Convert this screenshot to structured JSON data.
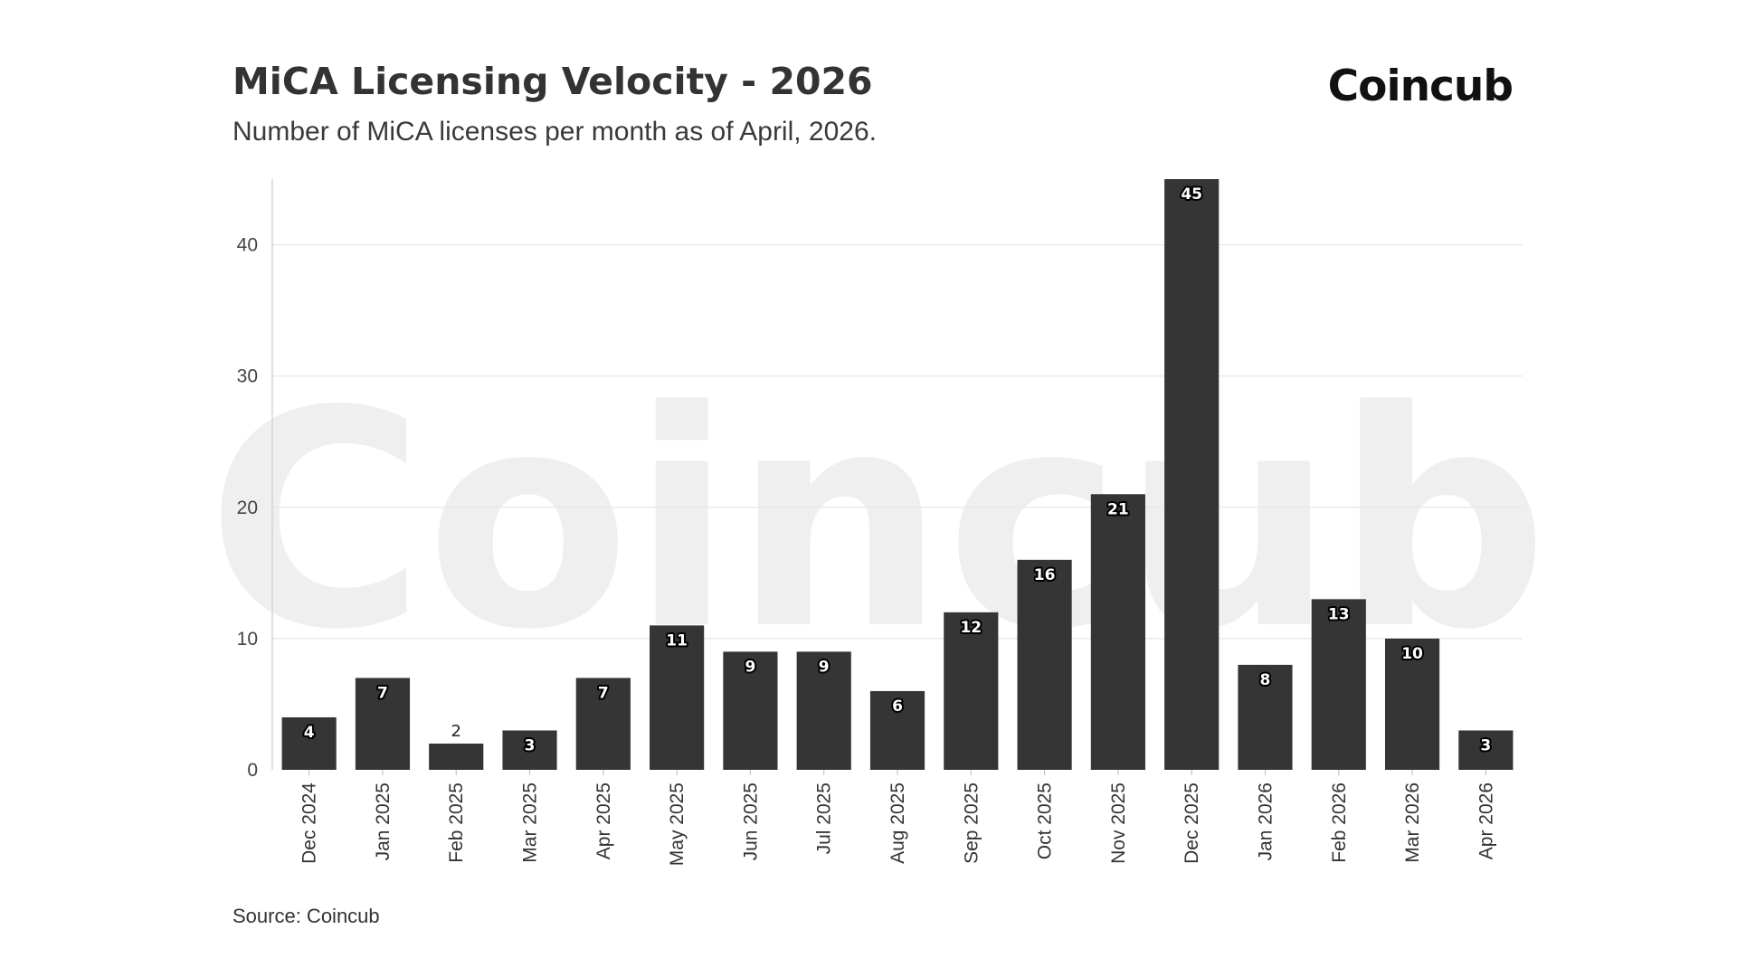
{
  "header": {
    "title": "MiCA Licensing Velocity - 2026",
    "subtitle": "Number of MiCA licenses per month as of April, 2026.",
    "brand": "Coincub"
  },
  "footer": {
    "source": "Source: Coincub"
  },
  "watermark": "Coincub",
  "colors": {
    "bar": "#2e2e2e",
    "grid": "#e6e6e6",
    "axis": "#cccccc",
    "watermark": "#e9e9e9"
  },
  "chart_data": {
    "type": "bar",
    "title": "MiCA Licensing Velocity - 2026",
    "subtitle": "Number of MiCA licenses per month as of April, 2026.",
    "xlabel": "",
    "ylabel": "",
    "categories": [
      "Dec 2024",
      "Jan 2025",
      "Feb 2025",
      "Mar 2025",
      "Apr 2025",
      "May 2025",
      "Jun 2025",
      "Jul 2025",
      "Aug 2025",
      "Sep 2025",
      "Oct 2025",
      "Nov 2025",
      "Dec 2025",
      "Jan 2026",
      "Feb 2026",
      "Mar 2026",
      "Apr 2026"
    ],
    "values": [
      4,
      7,
      2,
      3,
      7,
      11,
      9,
      9,
      6,
      12,
      16,
      21,
      45,
      8,
      13,
      10,
      3
    ],
    "ylim": [
      0,
      45
    ],
    "yticks": [
      0,
      10,
      20,
      30,
      40
    ],
    "grid": true,
    "legend": "none"
  }
}
